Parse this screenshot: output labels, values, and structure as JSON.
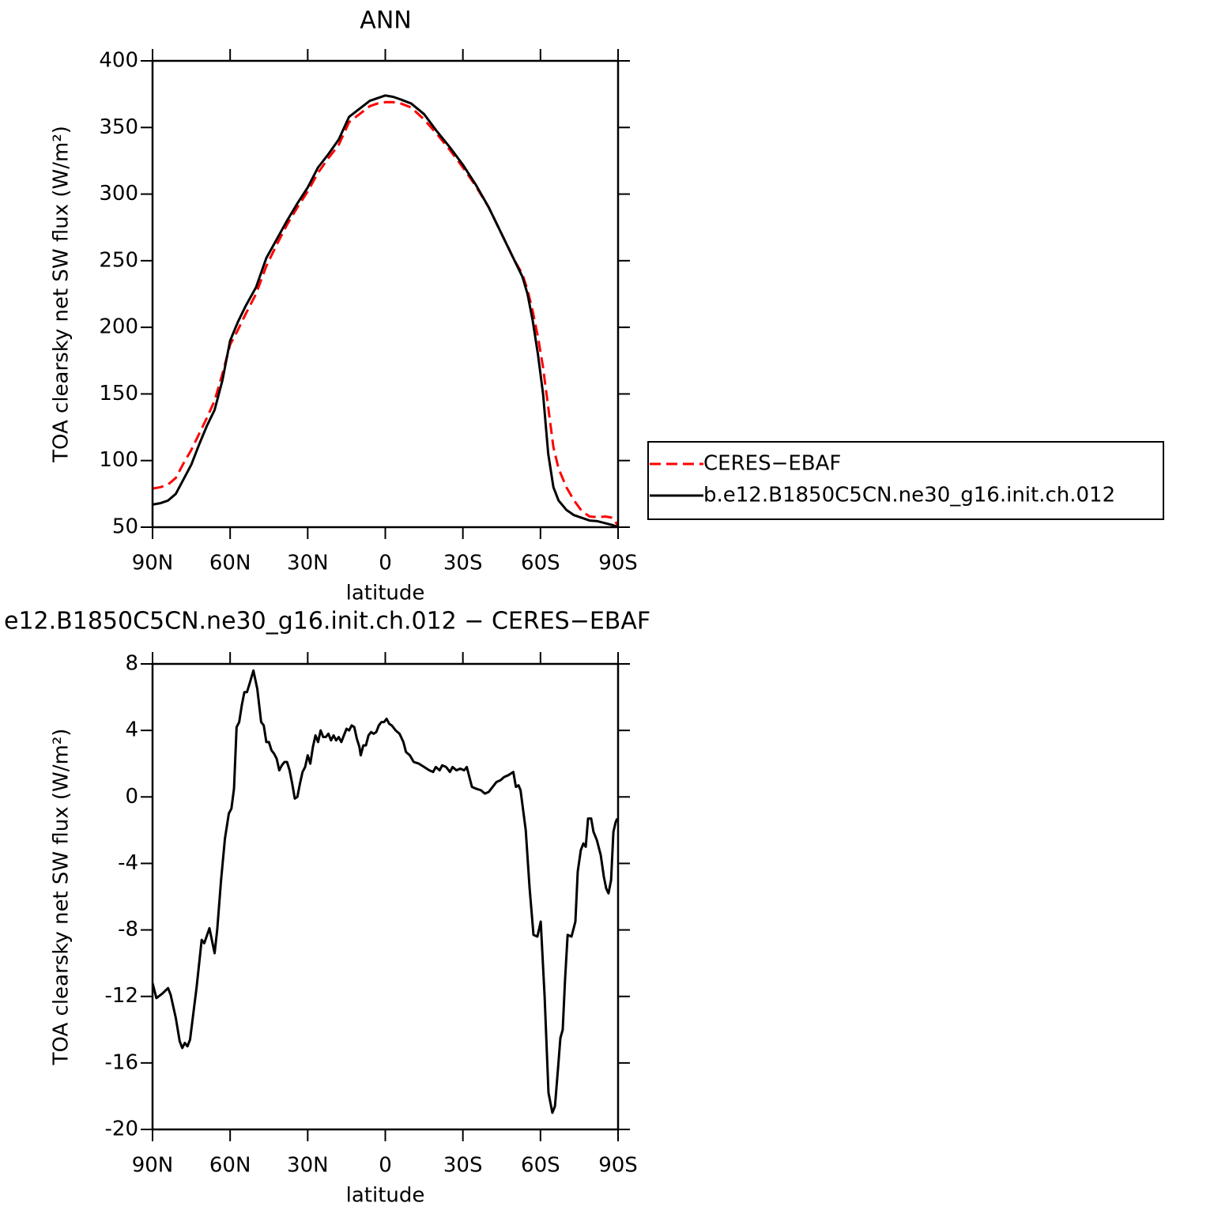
{
  "chart_data": [
    {
      "type": "line",
      "title": "ANN",
      "xlabel": "latitude",
      "ylabel": "TOA clearsky net SW flux (W/m²)",
      "xlim": [
        90,
        -90
      ],
      "xticks": [
        {
          "value": 90,
          "label": "90N"
        },
        {
          "value": 60,
          "label": "60N"
        },
        {
          "value": 30,
          "label": "30N"
        },
        0,
        {
          "value": -30,
          "label": "30S"
        },
        {
          "value": -60,
          "label": "60S"
        },
        {
          "value": -90,
          "label": "90S"
        }
      ],
      "ylim": [
        50,
        400
      ],
      "yticks": [
        50,
        100,
        150,
        200,
        250,
        300,
        350,
        400
      ],
      "legend": "right",
      "x": [
        90,
        87,
        84,
        81,
        78,
        75,
        72,
        69,
        66,
        63,
        60,
        57,
        54,
        50,
        46,
        42,
        38,
        34,
        30,
        26,
        22,
        18,
        14,
        10,
        6,
        3,
        0,
        -3,
        -6,
        -10,
        -15,
        -20,
        -25,
        -30,
        -35,
        -40,
        -45,
        -50,
        -53,
        -55,
        -57,
        -59,
        -61,
        -63,
        -65,
        -67,
        -70,
        -73,
        -76,
        -79,
        -82,
        -85,
        -88,
        -90
      ],
      "series": [
        {
          "name": "CERES−EBAF",
          "color": "#ff0000",
          "line_style": "dashed",
          "values": [
            79,
            80,
            82,
            87,
            98,
            108,
            120,
            132,
            145,
            165,
            187,
            198,
            210,
            225,
            246,
            262,
            277,
            290,
            302,
            316,
            327,
            337,
            354,
            360,
            366,
            368,
            369,
            369,
            368,
            365,
            356,
            345,
            333,
            320,
            306,
            290,
            270,
            250,
            240,
            228,
            212,
            193,
            170,
            140,
            110,
            94,
            80,
            70,
            62,
            58,
            57.5,
            58,
            57,
            51
          ]
        },
        {
          "name": "b.e12.B1850C5CN.ne30_g16.init.ch.012",
          "color": "#000000",
          "line_style": "solid",
          "values": [
            67,
            68,
            70,
            75,
            86,
            97,
            112,
            126,
            138,
            160,
            190,
            204,
            216,
            230,
            252,
            266,
            280,
            293,
            305,
            320,
            330,
            341,
            358,
            364,
            370,
            372,
            374,
            373,
            371,
            368,
            360,
            347,
            335,
            322,
            307,
            290,
            270,
            250,
            238,
            225,
            205,
            180,
            150,
            105,
            80,
            70,
            63,
            59,
            57,
            55,
            54.5,
            53,
            51.5,
            50
          ]
        }
      ]
    },
    {
      "type": "line",
      "title": "e12.B1850C5CN.ne30_g16.init.ch.012 − CERES−EBAF",
      "xlabel": "latitude",
      "ylabel": "TOA clearsky net SW flux (W/m²)",
      "xlim": [
        90,
        -90
      ],
      "xticks": [
        {
          "value": 90,
          "label": "90N"
        },
        {
          "value": 60,
          "label": "60N"
        },
        {
          "value": 30,
          "label": "30N"
        },
        0,
        {
          "value": -30,
          "label": "30S"
        },
        {
          "value": -60,
          "label": "60S"
        },
        {
          "value": -90,
          "label": "90S"
        }
      ],
      "ylim": [
        -20,
        8
      ],
      "yticks": [
        -20,
        -16,
        -12,
        -8,
        -4,
        0,
        4,
        8
      ],
      "x": [
        90,
        88.5,
        86,
        84,
        83,
        81,
        79.5,
        78.5,
        77.5,
        76.5,
        75.5,
        73,
        71,
        70,
        68,
        66,
        65,
        63.5,
        62,
        60.5,
        59.5,
        58.5,
        57.5,
        56.5,
        55.5,
        54.5,
        53.5,
        52.5,
        51,
        49.5,
        48,
        47,
        46,
        45,
        44,
        43,
        42,
        41,
        40,
        39,
        38,
        37,
        36,
        35,
        34,
        33,
        32,
        31,
        30,
        29,
        28,
        27,
        26,
        25,
        24,
        23,
        22,
        21,
        20,
        19,
        18,
        17,
        16,
        15,
        14,
        13,
        12,
        11,
        10,
        9.5,
        8.5,
        7.5,
        6.5,
        5.5,
        4.5,
        3.5,
        2.5,
        1.5,
        0.5,
        -0.5,
        -1.5,
        -2.5,
        -4,
        -5.5,
        -7,
        -8,
        -9.5,
        -11,
        -13,
        -15,
        -17,
        -18.5,
        -19.5,
        -21,
        -22,
        -23.5,
        -25,
        -26,
        -27.5,
        -29,
        -30.5,
        -31.5,
        -32.5,
        -33.5,
        -35,
        -37,
        -38.5,
        -40,
        -41.5,
        -43,
        -44.5,
        -46,
        -47.5,
        -49.5,
        -50.5,
        -51.5,
        -52.3,
        -54.3,
        -55.8,
        -57.3,
        -58.8,
        -60.1,
        -61.6,
        -63.1,
        -64.6,
        -65.6,
        -66.8,
        -67.7,
        -68.6,
        -69.5,
        -70.5,
        -72,
        -73.5,
        -74.4,
        -75.6,
        -76.6,
        -77.5,
        -78.4,
        -79.6,
        -80.5,
        -81.8,
        -83.3,
        -84.5,
        -85.4,
        -86.3,
        -87.3,
        -88.2,
        -89.1,
        -89.7
      ],
      "series": [
        {
          "color": "#000000",
          "line_style": "solid",
          "values": [
            -11.2,
            -12.1,
            -11.8,
            -11.5,
            -11.9,
            -13.3,
            -14.7,
            -15.1,
            -14.8,
            -15.0,
            -14.6,
            -11.5,
            -8.6,
            -8.8,
            -7.9,
            -9.4,
            -8,
            -5,
            -2.5,
            -1.0,
            -0.7,
            0.5,
            4.2,
            4.5,
            5.5,
            6.3,
            6.3,
            6.8,
            7.6,
            6.5,
            4.5,
            4.3,
            3.3,
            3.3,
            2.8,
            2.6,
            2.3,
            1.6,
            1.9,
            2.1,
            2.1,
            1.6,
            0.8,
            -0.1,
            0,
            0.8,
            1.5,
            1.8,
            2.5,
            2.0,
            3.0,
            3.7,
            3.3,
            4.0,
            3.6,
            3.6,
            3.8,
            3.4,
            3.7,
            3.4,
            3.6,
            3.3,
            3.7,
            4.1,
            4.0,
            4.3,
            4.2,
            3.5,
            3.0,
            2.5,
            3.1,
            3.1,
            3.7,
            3.9,
            3.8,
            3.9,
            4.3,
            4.5,
            4.5,
            4.7,
            4.4,
            4.3,
            4.0,
            3.8,
            3.3,
            2.7,
            2.5,
            2.1,
            2.0,
            1.8,
            1.6,
            1.5,
            1.8,
            1.6,
            1.9,
            1.8,
            1.5,
            1.8,
            1.6,
            1.7,
            1.6,
            1.8,
            1.2,
            0.6,
            0.5,
            0.4,
            0.2,
            0.3,
            0.6,
            0.9,
            1.0,
            1.2,
            1.3,
            1.5,
            0.6,
            0.7,
            0.4,
            -2,
            -5.5,
            -8.3,
            -8.4,
            -7.5,
            -12,
            -17.8,
            -19,
            -18.6,
            -16.3,
            -14.5,
            -14,
            -11,
            -8.3,
            -8.4,
            -7.5,
            -4.5,
            -3.2,
            -2.8,
            -3.0,
            -1.3,
            -1.3,
            -2.1,
            -2.6,
            -3.5,
            -4.8,
            -5.5,
            -5.8,
            -5.0,
            -2.1,
            -1.5,
            -1.3
          ]
        }
      ]
    }
  ]
}
